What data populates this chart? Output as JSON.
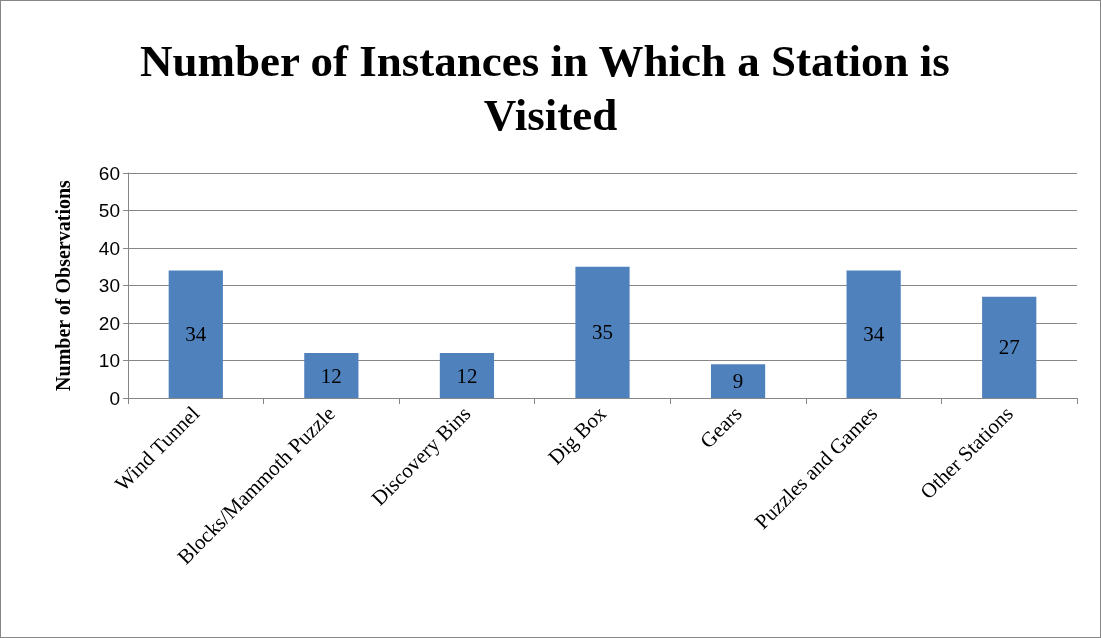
{
  "chart_data": {
    "type": "bar",
    "title": "Number of Instances in Which a Station is Visited",
    "ylabel": "Number of Observations",
    "categories": [
      "Wind Tunnel",
      "Blocks/Mammoth Puzzle",
      "Discovery Bins",
      "Dig Box",
      "Gears",
      "Puzzles and Games",
      "Other Stations"
    ],
    "values": [
      34,
      12,
      12,
      35,
      9,
      34,
      27
    ],
    "color": "#4f81bd",
    "ylim": [
      0,
      60
    ],
    "yticks": [
      0,
      10,
      20,
      30,
      40,
      50,
      60
    ],
    "grid": "y",
    "data_labels": true
  }
}
